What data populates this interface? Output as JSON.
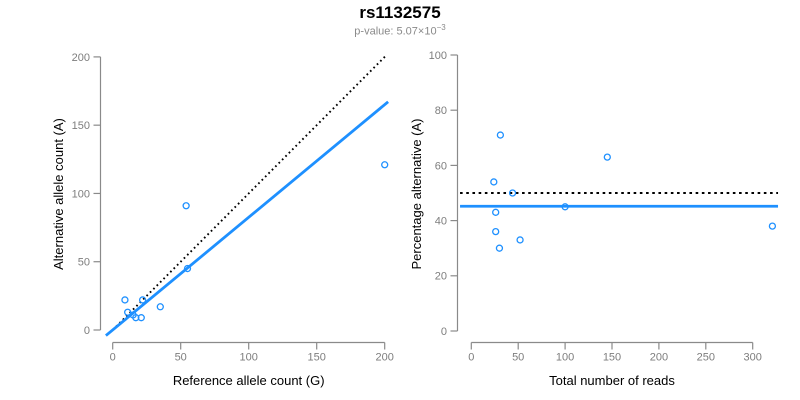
{
  "title": "rs1132575",
  "subtitle_display": {
    "prefix": "p-value: 5.07×10",
    "exponent": "−3"
  },
  "colors": {
    "accent_blue": "#1E90FF",
    "line_black": "#000000",
    "axis_gray": "#8a8a8a",
    "tick_label_gray": "#7d7d7d",
    "axis_title_black": "#000000",
    "subtitle_gray": "#8a8a8a"
  },
  "chart_data": [
    {
      "type": "scatter",
      "title": "rs1132575",
      "subtitle": "p-value: 5.07×10−3",
      "xlabel": "Reference allele count (G)",
      "ylabel": "Alternative allele count (A)",
      "xlim": [
        0,
        200
      ],
      "ylim": [
        0,
        200
      ],
      "xticks": [
        0,
        50,
        100,
        150,
        200
      ],
      "yticks": [
        0,
        50,
        100,
        150,
        200
      ],
      "grid": false,
      "legend": null,
      "points": [
        [
          9,
          22
        ],
        [
          11,
          13
        ],
        [
          15,
          11
        ],
        [
          17,
          9
        ],
        [
          21,
          9
        ],
        [
          22,
          22
        ],
        [
          35,
          17
        ],
        [
          55,
          45
        ],
        [
          54,
          91
        ],
        [
          200,
          121
        ]
      ],
      "lines": [
        {
          "name": "identity-line",
          "style": "dotted",
          "color": "#000000",
          "slope": 1,
          "intercept": 0,
          "from": [
            0,
            0
          ],
          "to": [
            201.5,
            201.5
          ]
        },
        {
          "name": "fitted-line",
          "style": "solid",
          "color": "#1E90FF",
          "slope": 0.825,
          "intercept": 0,
          "from": [
            -5,
            -4.1
          ],
          "to": [
            202.5,
            167.1
          ]
        }
      ]
    },
    {
      "type": "scatter",
      "xlabel": "Total number of reads",
      "ylabel": "Percentage alternative (A)",
      "xlim": [
        0,
        300
      ],
      "ylim": [
        0,
        100
      ],
      "xticks": [
        0,
        50,
        100,
        150,
        200,
        250,
        300
      ],
      "yticks": [
        0,
        20,
        40,
        60,
        80,
        100
      ],
      "grid": false,
      "legend": null,
      "points": [
        [
          24,
          54
        ],
        [
          26,
          43
        ],
        [
          26,
          36
        ],
        [
          30,
          30
        ],
        [
          31,
          71
        ],
        [
          44,
          50
        ],
        [
          52,
          33
        ],
        [
          100,
          45
        ],
        [
          145,
          63
        ],
        [
          321,
          38
        ]
      ],
      "lines": [
        {
          "name": "expected-50pct-line",
          "style": "dotted",
          "color": "#000000",
          "value": 50,
          "from": [
            -12,
            50
          ],
          "to": [
            327,
            50
          ]
        },
        {
          "name": "fitted-pct-line",
          "style": "solid",
          "color": "#1E90FF",
          "value": 45.2,
          "from": [
            -12,
            45.2
          ],
          "to": [
            327,
            45.2
          ]
        }
      ]
    }
  ]
}
